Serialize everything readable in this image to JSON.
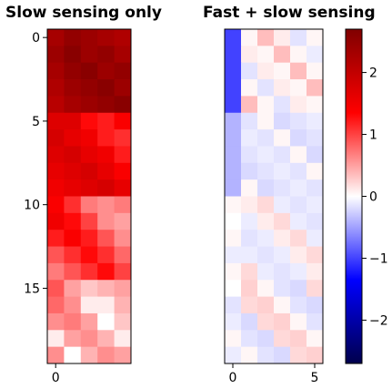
{
  "chart_data": [
    {
      "type": "heatmap",
      "title": "Slow sensing only",
      "rows": 20,
      "cols": 5,
      "xticks": [
        "0"
      ],
      "yticks": [
        "0",
        "5",
        "10",
        "15"
      ],
      "values": [
        [
          2.3,
          2.5,
          2.4,
          2.3,
          2.2
        ],
        [
          2.4,
          2.6,
          2.4,
          2.5,
          2.3
        ],
        [
          2.3,
          2.5,
          2.6,
          2.4,
          2.5
        ],
        [
          2.2,
          2.4,
          2.5,
          2.6,
          2.4
        ],
        [
          2.1,
          2.3,
          2.4,
          2.5,
          2.6
        ],
        [
          1.7,
          1.7,
          1.3,
          1.2,
          1.4
        ],
        [
          1.8,
          1.6,
          1.5,
          1.2,
          1.1
        ],
        [
          1.7,
          1.8,
          1.6,
          1.5,
          1.2
        ],
        [
          1.6,
          1.7,
          1.8,
          1.6,
          1.4
        ],
        [
          1.5,
          1.6,
          1.7,
          1.8,
          1.6
        ],
        [
          1.4,
          1.1,
          0.7,
          0.6,
          0.7
        ],
        [
          1.5,
          1.3,
          1.0,
          0.6,
          0.5
        ],
        [
          1.2,
          1.4,
          1.2,
          0.9,
          0.6
        ],
        [
          0.9,
          1.1,
          1.3,
          1.1,
          0.8
        ],
        [
          0.7,
          0.9,
          1.1,
          1.3,
          1.0
        ],
        [
          0.9,
          0.5,
          0.3,
          0.4,
          0.5
        ],
        [
          0.8,
          0.6,
          0.1,
          0.1,
          0.4
        ],
        [
          0.6,
          0.7,
          0.5,
          0.0,
          0.3
        ],
        [
          0.1,
          0.5,
          0.6,
          0.4,
          0.1
        ],
        [
          0.6,
          0.0,
          0.4,
          0.6,
          0.5
        ]
      ]
    },
    {
      "type": "heatmap",
      "title": "Fast + slow sensing",
      "rows": 20,
      "cols": 6,
      "xticks": [
        "0",
        "5"
      ],
      "yticks": [],
      "values": [
        [
          -1.0,
          0.05,
          0.35,
          0.1,
          -0.15,
          0.05
        ],
        [
          -1.0,
          0.1,
          0.05,
          0.35,
          0.05,
          -0.1
        ],
        [
          -1.0,
          -0.15,
          0.1,
          0.05,
          0.35,
          0.05
        ],
        [
          -1.0,
          0.05,
          -0.15,
          0.1,
          0.05,
          0.35
        ],
        [
          -1.0,
          0.35,
          0.05,
          -0.15,
          0.1,
          0.05
        ],
        [
          -0.4,
          -0.15,
          0.05,
          -0.2,
          -0.15,
          -0.1
        ],
        [
          -0.4,
          -0.1,
          -0.15,
          0.05,
          -0.2,
          -0.15
        ],
        [
          -0.4,
          -0.15,
          -0.1,
          -0.15,
          0.05,
          -0.2
        ],
        [
          -0.4,
          -0.2,
          -0.15,
          -0.1,
          -0.15,
          0.05
        ],
        [
          -0.4,
          0.05,
          -0.2,
          -0.15,
          -0.1,
          -0.15
        ],
        [
          0.05,
          0.1,
          0.2,
          -0.1,
          -0.15,
          -0.1
        ],
        [
          0.0,
          -0.1,
          0.1,
          0.2,
          -0.1,
          -0.15
        ],
        [
          0.05,
          -0.15,
          -0.1,
          0.1,
          0.2,
          -0.1
        ],
        [
          -0.1,
          -0.1,
          -0.15,
          -0.1,
          0.1,
          0.2
        ],
        [
          0.05,
          0.2,
          -0.1,
          -0.15,
          -0.1,
          0.1
        ],
        [
          0.0,
          0.25,
          0.05,
          -0.15,
          -0.2,
          0.2
        ],
        [
          -0.15,
          0.2,
          0.25,
          0.05,
          -0.15,
          -0.2
        ],
        [
          -0.1,
          -0.2,
          0.2,
          0.25,
          0.05,
          -0.15
        ],
        [
          0.05,
          -0.15,
          -0.2,
          0.2,
          0.25,
          0.05
        ],
        [
          -0.1,
          0.05,
          -0.15,
          -0.2,
          0.2,
          0.25
        ]
      ]
    }
  ],
  "colorbar": {
    "colormap": "seismic",
    "vmin": -2.7,
    "vmax": 2.7,
    "ticks": [
      2,
      1,
      0,
      -1,
      -2
    ],
    "tick_labels": [
      "2",
      "1",
      "0",
      "−1",
      "−2"
    ]
  }
}
